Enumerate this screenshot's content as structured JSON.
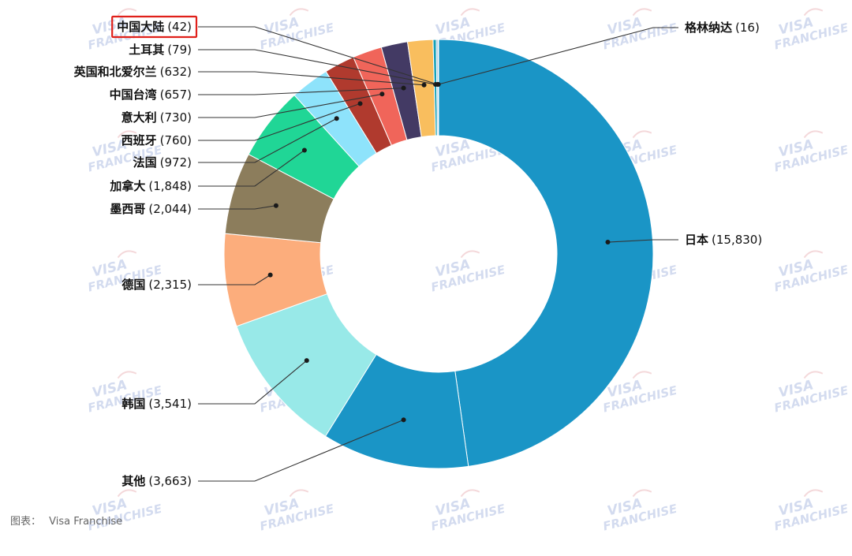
{
  "source": {
    "label": "图表：",
    "value": "Visa Franchise"
  },
  "watermark": {
    "line1": "VISA",
    "line2": "FRANCHISE"
  },
  "chart_data": {
    "type": "pie",
    "donut": true,
    "title": "",
    "unit_note": "",
    "highlighted": "中国大陆",
    "categories": [
      "日本",
      "其他",
      "韩国",
      "德国",
      "墨西哥",
      "加拿大",
      "法国",
      "西班牙",
      "意大利",
      "中国台湾",
      "英国和北爱尔兰",
      "土耳其",
      "中国大陆",
      "格林纳达"
    ],
    "values": [
      15830,
      3663,
      3541,
      2315,
      2044,
      1848,
      972,
      760,
      730,
      657,
      632,
      79,
      42,
      16
    ],
    "value_labels": [
      "(15,830)",
      "(3,663)",
      "(3,541)",
      "(2,315)",
      "(2,044)",
      "(1,848)",
      "(972)",
      "(760)",
      "(730)",
      "(657)",
      "(632)",
      "(79)",
      "(42)",
      "(16)"
    ],
    "colors": [
      "#1a95c6",
      "#1a95c6",
      "#98e9e8",
      "#fcad7c",
      "#8c7d5c",
      "#20d696",
      "#8ee3fb",
      "#b03a2e",
      "#f0655a",
      "#433a64",
      "#f9be5e",
      "#14a0b8",
      "#87b5d4",
      "#28d0c9"
    ]
  }
}
